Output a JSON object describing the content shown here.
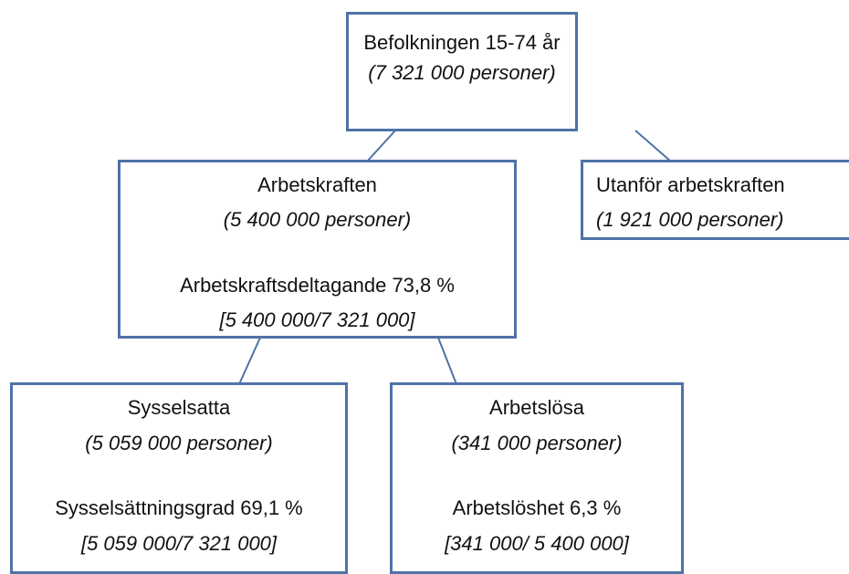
{
  "nodes": [
    {
      "lines": [
        "Befolkningen 15-74 år",
        "(7 321 000 personer)"
      ]
    },
    {
      "lines": [
        "Arbetskraften",
        "(5 400 000 personer)",
        "Arbetskraftsdeltagande  73,8 %",
        "[5 400 000/7 321 000]"
      ]
    },
    {
      "lines": [
        "Utanför arbetskraften",
        "(1 921 000 personer)"
      ]
    },
    {
      "lines": [
        "Sysselsatta",
        "(5 059 000 personer)",
        "Sysselsättningsgrad  69,1 %",
        "[5 059 000/7 321 000]"
      ]
    },
    {
      "lines": [
        "Arbetslösa",
        "(341 000 personer)",
        "Arbetslöshet 6,3 %",
        "[341 000/ 5 400 000]"
      ]
    }
  ]
}
